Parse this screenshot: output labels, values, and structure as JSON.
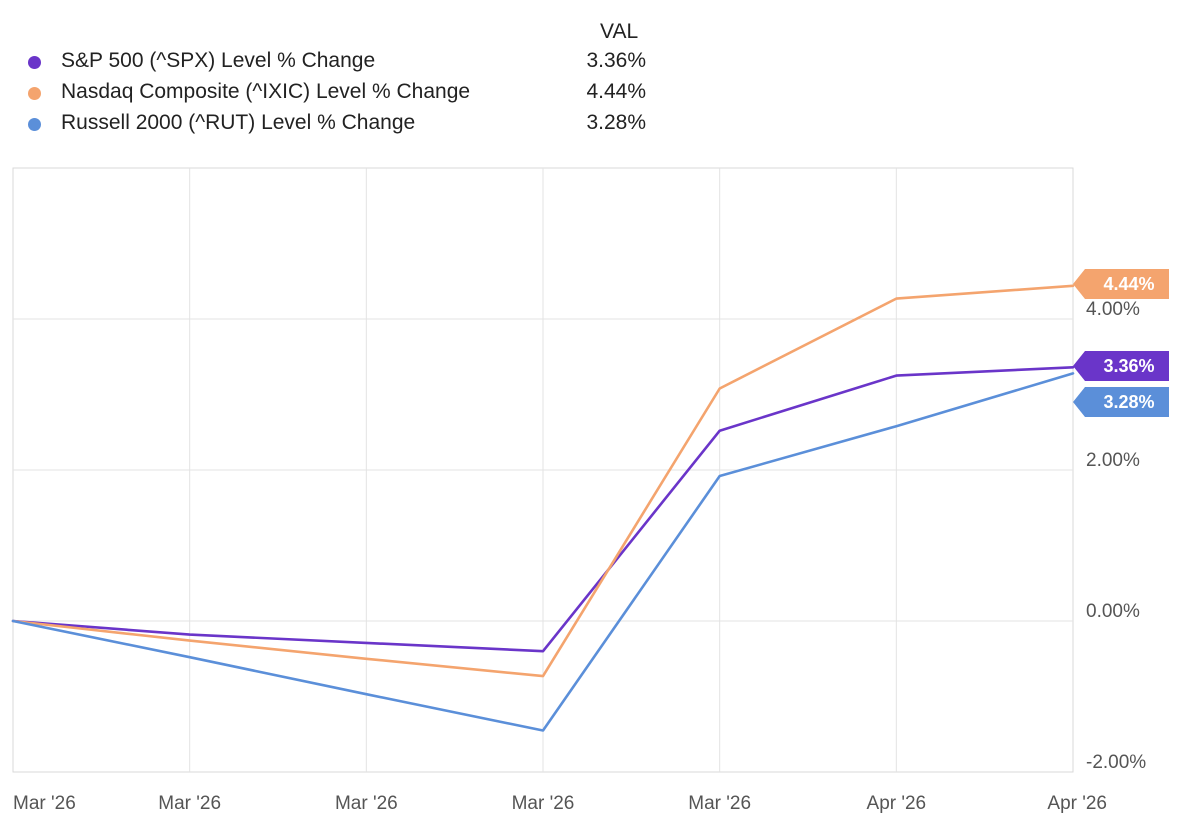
{
  "legend": {
    "header": "VAL",
    "items": [
      {
        "name": "S&P 500 (^SPX) Level % Change",
        "value": "3.36%",
        "color": "#6a35c9"
      },
      {
        "name": "Nasdaq Composite (^IXIC) Level % Change",
        "value": "4.44%",
        "color": "#f4a46e"
      },
      {
        "name": "Russell 2000 (^RUT) Level % Change",
        "value": "3.28%",
        "color": "#5b8fd9"
      }
    ]
  },
  "chart_data": {
    "type": "line",
    "x": [
      "Mar '26",
      "Mar '26",
      "Mar '26",
      "Mar '26",
      "Mar '26",
      "Apr '26",
      "Apr '26"
    ],
    "ylim": [
      -2.0,
      6.0
    ],
    "yticks": [
      {
        "value": 4.0,
        "label": "4.00%"
      },
      {
        "value": 2.0,
        "label": "2.00%"
      },
      {
        "value": 0.0,
        "label": "0.00%"
      },
      {
        "value": -2.0,
        "label": "-2.00%"
      }
    ],
    "grid": true,
    "series": [
      {
        "name": "S&P 500 (^SPX) Level % Change",
        "color": "#6a35c9",
        "end_label": "3.36%",
        "values": [
          0.0,
          -0.18,
          -0.29,
          -0.4,
          2.52,
          3.25,
          3.36
        ]
      },
      {
        "name": "Nasdaq Composite (^IXIC) Level % Change",
        "color": "#f4a46e",
        "end_label": "4.44%",
        "values": [
          0.0,
          -0.26,
          -0.5,
          -0.73,
          3.08,
          4.27,
          4.44
        ]
      },
      {
        "name": "Russell 2000 (^RUT) Level % Change",
        "color": "#5b8fd9",
        "end_label": "3.28%",
        "values": [
          0.0,
          -0.48,
          -0.97,
          -1.45,
          1.92,
          2.58,
          3.28
        ]
      }
    ]
  }
}
